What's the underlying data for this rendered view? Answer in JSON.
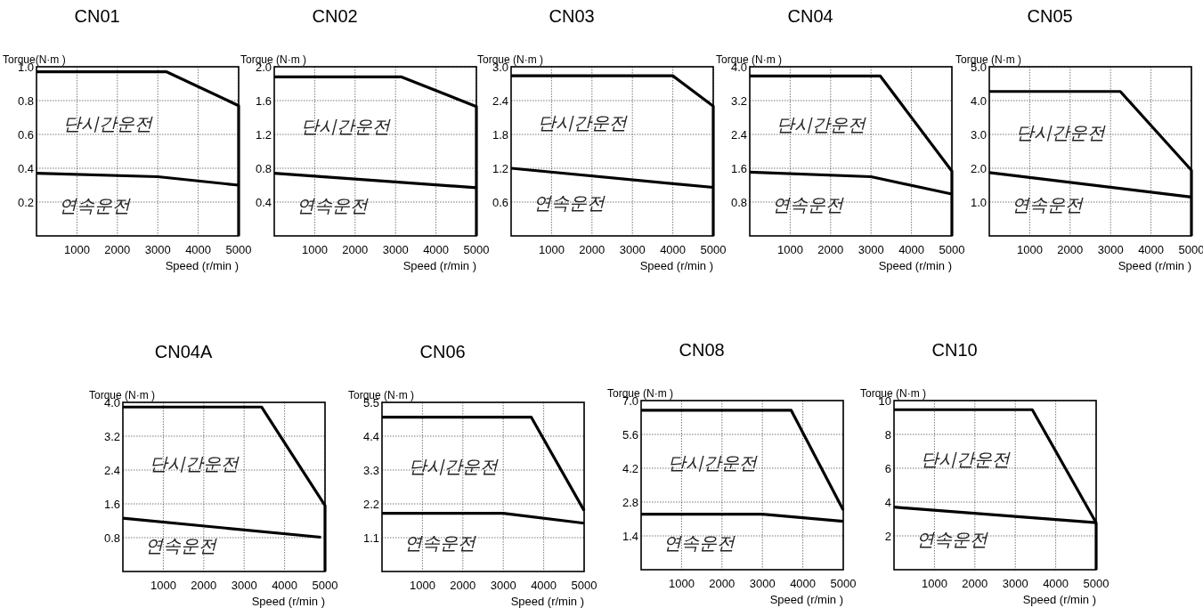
{
  "chart_data": [
    {
      "type": "line",
      "title": "CN01",
      "xlabel": "Speed (r/min )",
      "ylabel": "Torque(N·m )",
      "xlim": [
        0,
        5000
      ],
      "xticks": [
        1000,
        2000,
        3000,
        4000,
        5000
      ],
      "ylim": [
        0,
        1.0
      ],
      "yticks": [
        0.2,
        0.4,
        0.6,
        0.8,
        {
          "value": 1.0,
          "label": "1.0"
        }
      ],
      "grid": true,
      "annotations": [
        "단시간운전",
        "연속운전"
      ],
      "series": [
        {
          "color": "#000000",
          "x": [
            0,
            3220,
            5000,
            5000
          ],
          "values": [
            0.97,
            0.97,
            0.77,
            0
          ]
        },
        {
          "color": "#000000",
          "x": [
            0,
            3000,
            5000
          ],
          "values": [
            0.37,
            0.35,
            0.3
          ]
        }
      ]
    },
    {
      "type": "line",
      "title": "CN02",
      "xlabel": "Speed (r/min )",
      "ylabel": "Torque (N·m )",
      "xlim": [
        0,
        5000
      ],
      "xticks": [
        1000,
        2000,
        3000,
        4000,
        5000
      ],
      "ylim": [
        0,
        2.0
      ],
      "yticks": [
        0.4,
        0.8,
        1.2,
        1.6,
        {
          "value": 2.0,
          "label": "2.0"
        }
      ],
      "grid": true,
      "annotations": [
        "단시간운전",
        "연속운전"
      ],
      "series": [
        {
          "color": "#000000",
          "x": [
            0,
            3150,
            5000,
            5000
          ],
          "values": [
            1.88,
            1.88,
            1.53,
            0
          ]
        },
        {
          "color": "#000000",
          "x": [
            0,
            5000
          ],
          "values": [
            0.74,
            0.57
          ]
        }
      ]
    },
    {
      "type": "line",
      "title": "CN03",
      "xlabel": "Speed (r/min )",
      "ylabel": "Torque (N·m )",
      "xlim": [
        0,
        5000
      ],
      "xticks": [
        1000,
        2000,
        3000,
        4000,
        5000
      ],
      "ylim": [
        0,
        3.0
      ],
      "yticks": [
        0.6,
        1.2,
        1.8,
        2.4,
        {
          "value": 3.0,
          "label": "3.0"
        }
      ],
      "grid": true,
      "annotations": [
        "단시간운전",
        "연속운전"
      ],
      "series": [
        {
          "color": "#000000",
          "x": [
            0,
            4000,
            5000,
            5000
          ],
          "values": [
            2.84,
            2.84,
            2.3,
            0
          ]
        },
        {
          "color": "#000000",
          "x": [
            0,
            5000
          ],
          "values": [
            1.2,
            0.86
          ]
        }
      ]
    },
    {
      "type": "line",
      "title": "CN04",
      "xlabel": "Speed (r/min )",
      "ylabel": "Torque (N·m )",
      "xlim": [
        0,
        5000
      ],
      "xticks": [
        1000,
        2000,
        3000,
        4000,
        5000
      ],
      "ylim": [
        0,
        4.0
      ],
      "yticks": [
        0.8,
        1.6,
        2.4,
        3.2,
        {
          "value": 4.0,
          "label": "4.0"
        }
      ],
      "grid": true,
      "annotations": [
        "단시간운전",
        "연속운전"
      ],
      "series": [
        {
          "color": "#000000",
          "x": [
            0,
            3230,
            5000,
            5000
          ],
          "values": [
            3.78,
            3.78,
            1.53,
            0
          ]
        },
        {
          "color": "#000000",
          "x": [
            0,
            3000,
            5000
          ],
          "values": [
            1.51,
            1.4,
            0.99
          ]
        }
      ]
    },
    {
      "type": "line",
      "title": "CN05",
      "xlabel": "Speed (r/min )",
      "ylabel": "Torque (N·m )",
      "xlim": [
        0,
        5000
      ],
      "xticks": [
        1000,
        2000,
        3000,
        4000,
        5000
      ],
      "ylim": [
        0,
        5.0
      ],
      "yticks": [
        {
          "value": 1.0,
          "label": "1.0"
        },
        {
          "value": 2.0,
          "label": "2.0"
        },
        {
          "value": 3.0,
          "label": "3.0"
        },
        {
          "value": 4.0,
          "label": "4.0"
        },
        {
          "value": 5.0,
          "label": "5.0"
        }
      ],
      "grid": true,
      "annotations": [
        "단시간운전",
        "연속운전"
      ],
      "series": [
        {
          "color": "#000000",
          "x": [
            0,
            3240,
            5000,
            5000
          ],
          "values": [
            4.27,
            4.27,
            1.94,
            0
          ]
        },
        {
          "color": "#000000",
          "x": [
            0,
            5000
          ],
          "values": [
            1.87,
            1.15
          ]
        }
      ]
    },
    {
      "type": "line",
      "title": "CN04A",
      "xlabel": "Speed (r/min )",
      "ylabel": "Torque (N·m )",
      "xlim": [
        0,
        5000
      ],
      "xticks": [
        1000,
        2000,
        3000,
        4000,
        5000
      ],
      "ylim": [
        0,
        4.0
      ],
      "yticks": [
        0.8,
        1.6,
        2.4,
        3.2,
        {
          "value": 4.0,
          "label": "4.0"
        }
      ],
      "grid": true,
      "annotations": [
        "단시간운전",
        "연속운전"
      ],
      "series": [
        {
          "color": "#000000",
          "x": [
            0,
            3430,
            5000,
            5000
          ],
          "values": [
            3.89,
            3.89,
            1.56,
            0
          ]
        },
        {
          "color": "#000000",
          "x": [
            0,
            4900
          ],
          "values": [
            1.26,
            0.81
          ]
        }
      ]
    },
    {
      "type": "line",
      "title": "CN06",
      "xlabel": "Speed (r/min )",
      "ylabel": "Torque (N·m )",
      "xlim": [
        0,
        5000
      ],
      "xticks": [
        1000,
        2000,
        3000,
        4000,
        5000
      ],
      "ylim": [
        0,
        5.5
      ],
      "yticks": [
        1.1,
        2.2,
        3.3,
        4.4,
        5.5
      ],
      "grid": true,
      "annotations": [
        "단시간운전",
        "연속운전"
      ],
      "series": [
        {
          "color": "#000000",
          "x": [
            0,
            3690,
            5000
          ],
          "values": [
            5.02,
            5.02,
            1.98
          ]
        },
        {
          "color": "#000000",
          "x": [
            0,
            3000,
            5000
          ],
          "values": [
            1.89,
            1.89,
            1.57
          ]
        }
      ]
    },
    {
      "type": "line",
      "title": "CN08",
      "xlabel": "Speed (r/min )",
      "ylabel": "Torque (N·m )",
      "xlim": [
        0,
        5000
      ],
      "xticks": [
        1000,
        2000,
        3000,
        4000,
        5000
      ],
      "ylim": [
        0,
        7.0
      ],
      "yticks": [
        1.4,
        2.8,
        4.2,
        5.6,
        {
          "value": 7.0,
          "label": "7.0"
        }
      ],
      "grid": true,
      "annotations": [
        "단시간운전",
        "연속운전"
      ],
      "series": [
        {
          "color": "#000000",
          "x": [
            0,
            3710,
            5000
          ],
          "values": [
            6.6,
            6.6,
            2.47
          ]
        },
        {
          "color": "#000000",
          "x": [
            0,
            3000,
            5000
          ],
          "values": [
            2.3,
            2.3,
            2.0
          ]
        }
      ]
    },
    {
      "type": "line",
      "title": "CN10",
      "xlabel": "Speed (r/min )",
      "ylabel": "Torque (N·m )",
      "xlim": [
        0,
        5000
      ],
      "xticks": [
        1000,
        2000,
        3000,
        4000,
        5000
      ],
      "ylim": [
        0,
        10
      ],
      "yticks": [
        2,
        4,
        6,
        8,
        10
      ],
      "grid": true,
      "annotations": [
        "단시간운전",
        "연속운전"
      ],
      "series": [
        {
          "color": "#000000",
          "x": [
            0,
            3420,
            5000,
            5000
          ],
          "values": [
            9.46,
            9.46,
            2.78,
            0
          ]
        },
        {
          "color": "#000000",
          "x": [
            0,
            5000
          ],
          "values": [
            3.7,
            2.78
          ]
        }
      ]
    }
  ]
}
